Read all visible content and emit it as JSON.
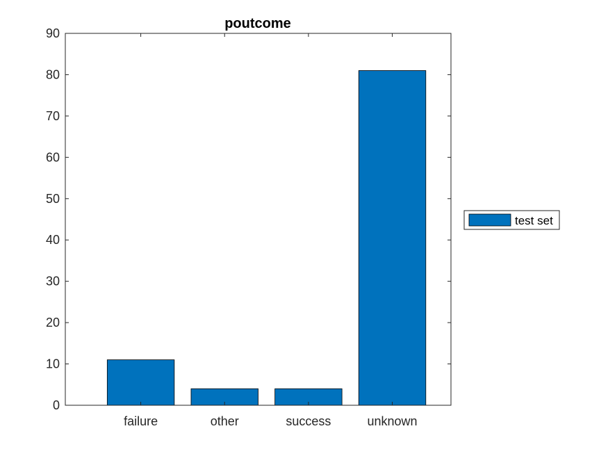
{
  "chart_data": {
    "type": "bar",
    "title": "poutcome",
    "xlabel": "",
    "ylabel": "",
    "categories": [
      "failure",
      "other",
      "success",
      "unknown"
    ],
    "series": [
      {
        "name": "test set",
        "values": [
          11,
          4,
          4,
          81
        ],
        "color": "#0072BD"
      }
    ],
    "ylim": [
      0,
      90
    ],
    "yticks": [
      0,
      10,
      20,
      30,
      40,
      50,
      60,
      70,
      80,
      90
    ],
    "grid": false,
    "legend_position": "outside-right"
  }
}
